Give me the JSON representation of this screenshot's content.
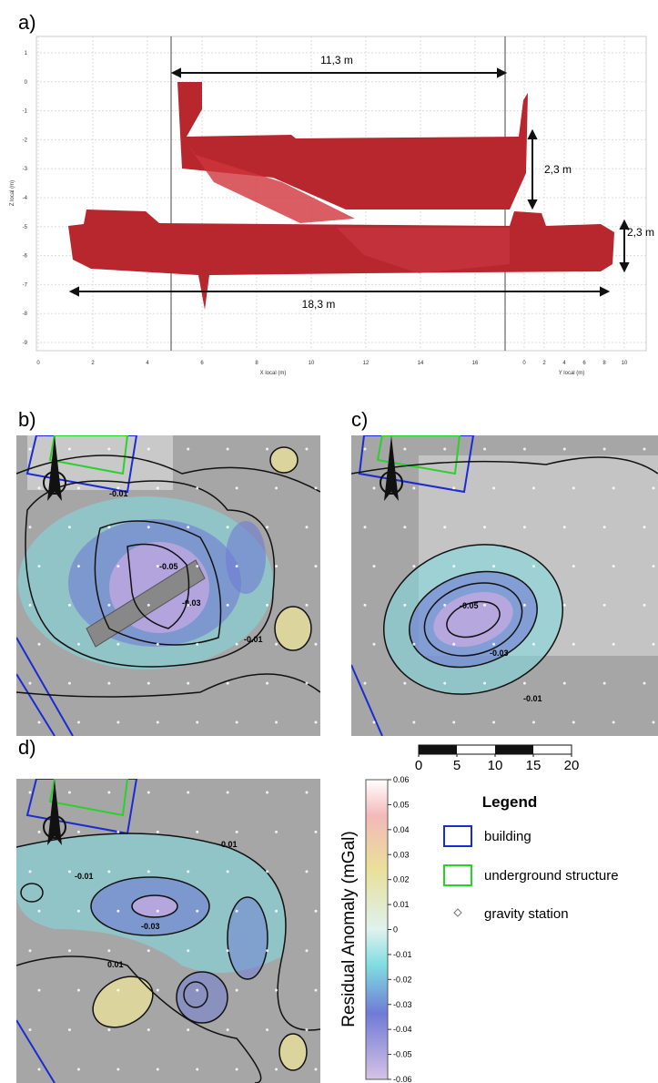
{
  "panel_a": {
    "label": "a)",
    "x_axis_label": "X local (m)",
    "y_axis_label": "Z local (m)",
    "x2_axis_label": "Y local (m)",
    "xticks": [
      0,
      2,
      4,
      6,
      8,
      10,
      12,
      14,
      16
    ],
    "x2ticks": [
      0,
      2,
      4,
      6,
      8,
      10
    ],
    "zticks": [
      1,
      0,
      -1,
      -2,
      -3,
      -4,
      -5,
      -6,
      -7,
      -8,
      -9
    ],
    "dimensions": [
      "11,3 m",
      "2,3 m",
      "2,3 m",
      "18,3 m"
    ]
  },
  "panel_b": {
    "label": "b)",
    "contour_labels": [
      "-0.01",
      "-0.03",
      "-0.05",
      "-0.01"
    ]
  },
  "panel_c": {
    "label": "c)",
    "contour_labels": [
      "-0.05",
      "-0.03",
      "-0.01"
    ]
  },
  "panel_d": {
    "label": "d)",
    "contour_labels": [
      "-0.01",
      "-0.01",
      "-0.03",
      "0.01"
    ]
  },
  "scale_bar": {
    "ticks": [
      0,
      5,
      10,
      15,
      20
    ]
  },
  "colorbar": {
    "title": "Residual Anomaly (mGal)",
    "ticks": [
      0.06,
      0.05,
      0.04,
      0.03,
      0.02,
      0.01,
      0,
      -0.01,
      -0.02,
      -0.03,
      -0.04,
      -0.05,
      -0.06
    ]
  },
  "legend": {
    "title": "Legend",
    "items": [
      "building",
      "underground structure",
      "gravity station"
    ]
  }
}
